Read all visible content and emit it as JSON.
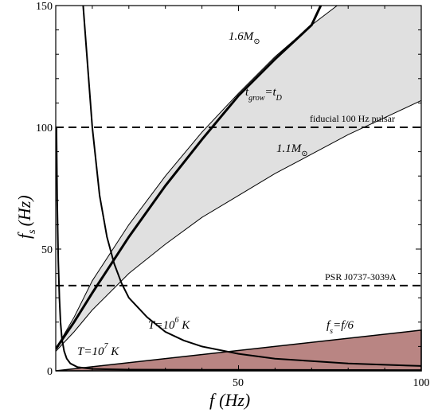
{
  "chart_data": {
    "type": "line",
    "title": "",
    "xlabel": {
      "main": "f",
      "unit": "(Hz)"
    },
    "ylabel": {
      "main": "f",
      "sub": "s",
      "unit": "(Hz)"
    },
    "xlim": [
      0,
      100
    ],
    "ylim": [
      0,
      150
    ],
    "x_ticks": [
      0,
      50,
      100
    ],
    "y_ticks": [
      0,
      50,
      100,
      150
    ],
    "x_tick_labels": [
      "50",
      "100"
    ],
    "y_tick_labels": [
      "0",
      "50",
      "100",
      "150"
    ],
    "grid": false,
    "legend": "none",
    "colors": {
      "band_fill": "#e0e0e0",
      "triangle_fill": "#b98583",
      "line": "#000000"
    },
    "band": {
      "upper": [
        [
          0,
          9
        ],
        [
          5,
          22
        ],
        [
          10,
          37
        ],
        [
          20,
          60
        ],
        [
          30,
          80
        ],
        [
          40,
          98
        ],
        [
          50,
          114
        ],
        [
          60,
          129
        ],
        [
          70,
          142
        ],
        [
          77,
          150
        ]
      ],
      "lower": [
        [
          0,
          8
        ],
        [
          5,
          16
        ],
        [
          10,
          25
        ],
        [
          20,
          40
        ],
        [
          30,
          52
        ],
        [
          40,
          63
        ],
        [
          50,
          72
        ],
        [
          60,
          81
        ],
        [
          70,
          89
        ],
        [
          80,
          97
        ],
        [
          90,
          104
        ],
        [
          100,
          111
        ]
      ]
    },
    "series": [
      {
        "label_main": "t",
        "label_sub": "grow",
        "label_eq": "=t",
        "label_sub2": "D",
        "points": [
          [
            0,
            9
          ],
          [
            5,
            20
          ],
          [
            10,
            32
          ],
          [
            20,
            55
          ],
          [
            30,
            76
          ],
          [
            40,
            95
          ],
          [
            50,
            113
          ],
          [
            60,
            128
          ],
          [
            70,
            142
          ],
          [
            72.5,
            150
          ]
        ]
      },
      {
        "label_main": "T=10",
        "label_sup": "6",
        "label_unit": " K",
        "points": [
          [
            7.5,
            150
          ],
          [
            8.5,
            130
          ],
          [
            10,
            100
          ],
          [
            12,
            72
          ],
          [
            14,
            55
          ],
          [
            16,
            44
          ],
          [
            18,
            36
          ],
          [
            20,
            30
          ],
          [
            25,
            22
          ],
          [
            30,
            16
          ],
          [
            35,
            12.5
          ],
          [
            40,
            10
          ],
          [
            50,
            7
          ],
          [
            60,
            5
          ],
          [
            70,
            4
          ],
          [
            80,
            3
          ],
          [
            90,
            2.5
          ],
          [
            100,
            2
          ]
        ]
      },
      {
        "label_main": "T=10",
        "label_sup": "7",
        "label_unit": " K",
        "points": [
          [
            0.2,
            100
          ],
          [
            0.4,
            70
          ],
          [
            0.7,
            45
          ],
          [
            1,
            30
          ],
          [
            1.3,
            20
          ],
          [
            1.7,
            13
          ],
          [
            2.3,
            8
          ],
          [
            3,
            5
          ],
          [
            4,
            3
          ],
          [
            6,
            1.5
          ],
          [
            10,
            0.8
          ],
          [
            20,
            0.5
          ],
          [
            50,
            0.4
          ],
          [
            100,
            0.3
          ]
        ]
      },
      {
        "label_main": "f",
        "label_sub": "s",
        "label_eq": "=f/6",
        "points": [
          [
            0,
            0
          ],
          [
            100,
            16.7
          ]
        ]
      }
    ],
    "hlines": [
      {
        "y": 100,
        "label": "fiducial 100 Hz pulsar"
      },
      {
        "y": 35,
        "label": "PSR J0737-3039A"
      }
    ],
    "annotations": [
      {
        "text": "1.6M",
        "sub": "⊙"
      },
      {
        "text": "1.1M",
        "sub": "⊙"
      }
    ]
  }
}
